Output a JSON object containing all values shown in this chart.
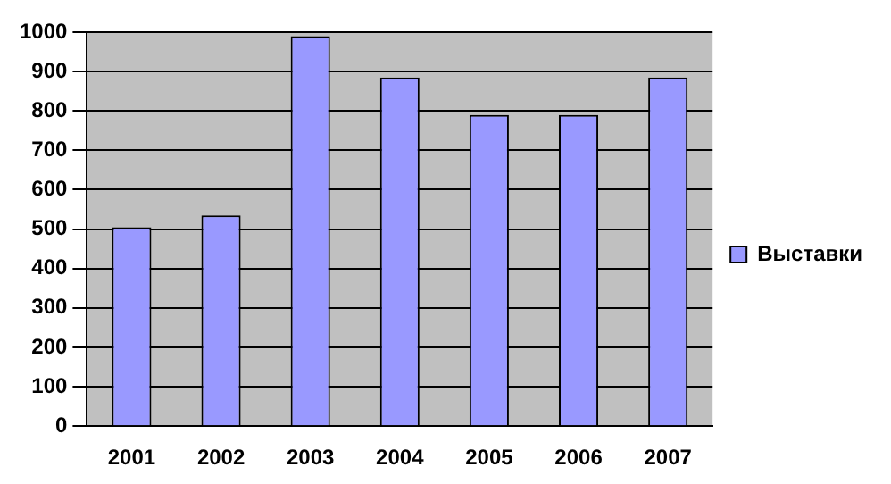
{
  "chart_data": {
    "type": "bar",
    "categories": [
      "2001",
      "2002",
      "2003",
      "2004",
      "2005",
      "2006",
      "2007"
    ],
    "series": [
      {
        "name": "Выставки",
        "color": "#9999ff",
        "values": [
          505,
          535,
          990,
          885,
          790,
          790,
          885
        ]
      }
    ],
    "ylim": [
      0,
      1000
    ],
    "yticks": [
      0,
      100,
      200,
      300,
      400,
      500,
      600,
      700,
      800,
      900,
      1000
    ],
    "grid": "y",
    "legend": "right"
  }
}
